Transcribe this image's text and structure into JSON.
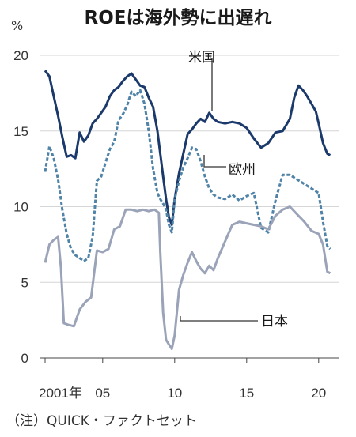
{
  "chart_data": {
    "type": "line",
    "title": "ROEは海外勢に出遅れ",
    "unit_label": "%",
    "source": "（注）QUICK・ファクトセット",
    "xlim": [
      2001.0,
      2021.0
    ],
    "ylim": [
      0,
      20
    ],
    "y_ticks": [
      0,
      5,
      10,
      15,
      20
    ],
    "x_ticks": [
      {
        "value": 2001,
        "label": "2001年"
      },
      {
        "value": 2005,
        "label": "05"
      },
      {
        "value": 2010,
        "label": "10"
      },
      {
        "value": 2015,
        "label": "15"
      },
      {
        "value": 2020,
        "label": "20"
      }
    ],
    "grid": "horizontal",
    "series": [
      {
        "name": "米国",
        "color": "#1b3a6b",
        "style": "solid",
        "x": [
          2001.0,
          2001.3,
          2001.6,
          2001.9,
          2002.2,
          2002.5,
          2002.8,
          2003.1,
          2003.4,
          2003.7,
          2004.0,
          2004.3,
          2004.6,
          2004.9,
          2005.2,
          2005.5,
          2005.8,
          2006.1,
          2006.4,
          2006.7,
          2007.0,
          2007.3,
          2007.6,
          2007.9,
          2008.2,
          2008.5,
          2008.8,
          2009.0,
          2009.2,
          2009.4,
          2009.6,
          2009.8,
          2010.0,
          2010.3,
          2010.6,
          2010.9,
          2011.2,
          2011.5,
          2011.8,
          2012.1,
          2012.4,
          2012.7,
          2013.0,
          2013.5,
          2014.0,
          2014.5,
          2015.0,
          2015.5,
          2016.0,
          2016.5,
          2017.0,
          2017.5,
          2018.0,
          2018.3,
          2018.6,
          2018.9,
          2019.2,
          2019.5,
          2019.8,
          2020.0,
          2020.3,
          2020.6,
          2020.8
        ],
        "values": [
          19.0,
          18.6,
          17.3,
          16.0,
          14.6,
          13.3,
          13.4,
          13.2,
          14.9,
          14.3,
          14.7,
          15.5,
          15.8,
          16.2,
          16.6,
          17.3,
          17.7,
          17.9,
          18.3,
          18.6,
          18.8,
          18.4,
          18.0,
          17.9,
          17.2,
          16.6,
          15.0,
          13.5,
          12.0,
          10.5,
          9.3,
          8.8,
          10.5,
          12.2,
          13.5,
          14.8,
          15.1,
          15.5,
          15.8,
          15.6,
          16.2,
          15.8,
          15.6,
          15.5,
          15.6,
          15.5,
          15.2,
          14.5,
          13.9,
          14.2,
          14.9,
          15.0,
          15.8,
          17.2,
          18.0,
          17.7,
          17.3,
          16.8,
          16.3,
          15.5,
          14.2,
          13.5,
          13.4
        ]
      },
      {
        "name": "欧州",
        "color": "#4f83a8",
        "style": "dashed",
        "x": [
          2001.0,
          2001.3,
          2001.6,
          2001.9,
          2002.2,
          2002.5,
          2002.8,
          2003.1,
          2003.4,
          2003.7,
          2004.0,
          2004.3,
          2004.6,
          2004.9,
          2005.2,
          2005.5,
          2005.8,
          2006.1,
          2006.4,
          2006.7,
          2007.0,
          2007.3,
          2007.6,
          2007.9,
          2008.2,
          2008.5,
          2008.8,
          2009.0,
          2009.2,
          2009.4,
          2009.6,
          2009.8,
          2010.0,
          2010.3,
          2010.6,
          2010.9,
          2011.2,
          2011.5,
          2011.8,
          2012.1,
          2012.4,
          2012.7,
          2013.0,
          2013.5,
          2014.0,
          2014.5,
          2015.0,
          2015.5,
          2016.0,
          2016.5,
          2017.0,
          2017.5,
          2018.0,
          2018.5,
          2019.0,
          2019.5,
          2020.0,
          2020.3,
          2020.6,
          2020.8
        ],
        "values": [
          12.3,
          14.0,
          13.2,
          11.8,
          9.8,
          8.2,
          7.2,
          6.8,
          6.6,
          6.4,
          6.6,
          8.0,
          11.7,
          12.0,
          12.9,
          13.8,
          14.3,
          15.7,
          16.1,
          16.7,
          17.6,
          17.3,
          17.7,
          16.8,
          15.0,
          12.5,
          10.9,
          10.5,
          10.2,
          9.8,
          8.8,
          8.3,
          10.5,
          11.7,
          12.6,
          13.2,
          13.9,
          13.8,
          13.0,
          12.0,
          11.2,
          10.8,
          10.6,
          10.5,
          10.8,
          10.4,
          10.7,
          10.9,
          8.6,
          8.3,
          10.4,
          12.1,
          12.1,
          11.8,
          11.5,
          11.2,
          10.9,
          9.0,
          7.4,
          7.2
        ]
      },
      {
        "name": "日本",
        "color": "#9aa3b8",
        "style": "solid",
        "x": [
          2001.0,
          2001.3,
          2001.6,
          2001.9,
          2002.1,
          2002.3,
          2002.6,
          2003.0,
          2003.4,
          2003.8,
          2004.2,
          2004.6,
          2005.0,
          2005.4,
          2005.8,
          2006.2,
          2006.6,
          2007.0,
          2007.4,
          2007.8,
          2008.2,
          2008.6,
          2008.9,
          2009.0,
          2009.2,
          2009.4,
          2009.6,
          2009.8,
          2010.0,
          2010.3,
          2010.6,
          2010.9,
          2011.2,
          2011.5,
          2011.8,
          2012.1,
          2012.4,
          2012.7,
          2013.0,
          2013.5,
          2014.0,
          2014.5,
          2015.0,
          2015.5,
          2016.0,
          2016.5,
          2017.0,
          2017.5,
          2018.0,
          2018.5,
          2019.0,
          2019.5,
          2020.0,
          2020.3,
          2020.6,
          2020.8
        ],
        "values": [
          6.3,
          7.5,
          7.8,
          8.0,
          6.0,
          2.3,
          2.2,
          2.1,
          3.2,
          3.7,
          4.0,
          7.1,
          7.0,
          7.2,
          8.5,
          8.7,
          9.8,
          9.8,
          9.7,
          9.8,
          9.7,
          9.8,
          9.6,
          7.0,
          3.0,
          1.2,
          0.9,
          0.6,
          1.5,
          4.5,
          5.5,
          6.3,
          7.0,
          6.4,
          5.9,
          5.6,
          6.1,
          5.8,
          6.6,
          7.7,
          8.8,
          9.0,
          8.9,
          8.8,
          8.7,
          8.5,
          9.4,
          9.8,
          10.0,
          9.5,
          9.0,
          8.4,
          8.2,
          7.5,
          5.7,
          5.6
        ]
      }
    ],
    "annotations": [
      {
        "series": "米国",
        "text": "米国"
      },
      {
        "series": "欧州",
        "text": "欧州"
      },
      {
        "series": "日本",
        "text": "日本"
      }
    ]
  }
}
